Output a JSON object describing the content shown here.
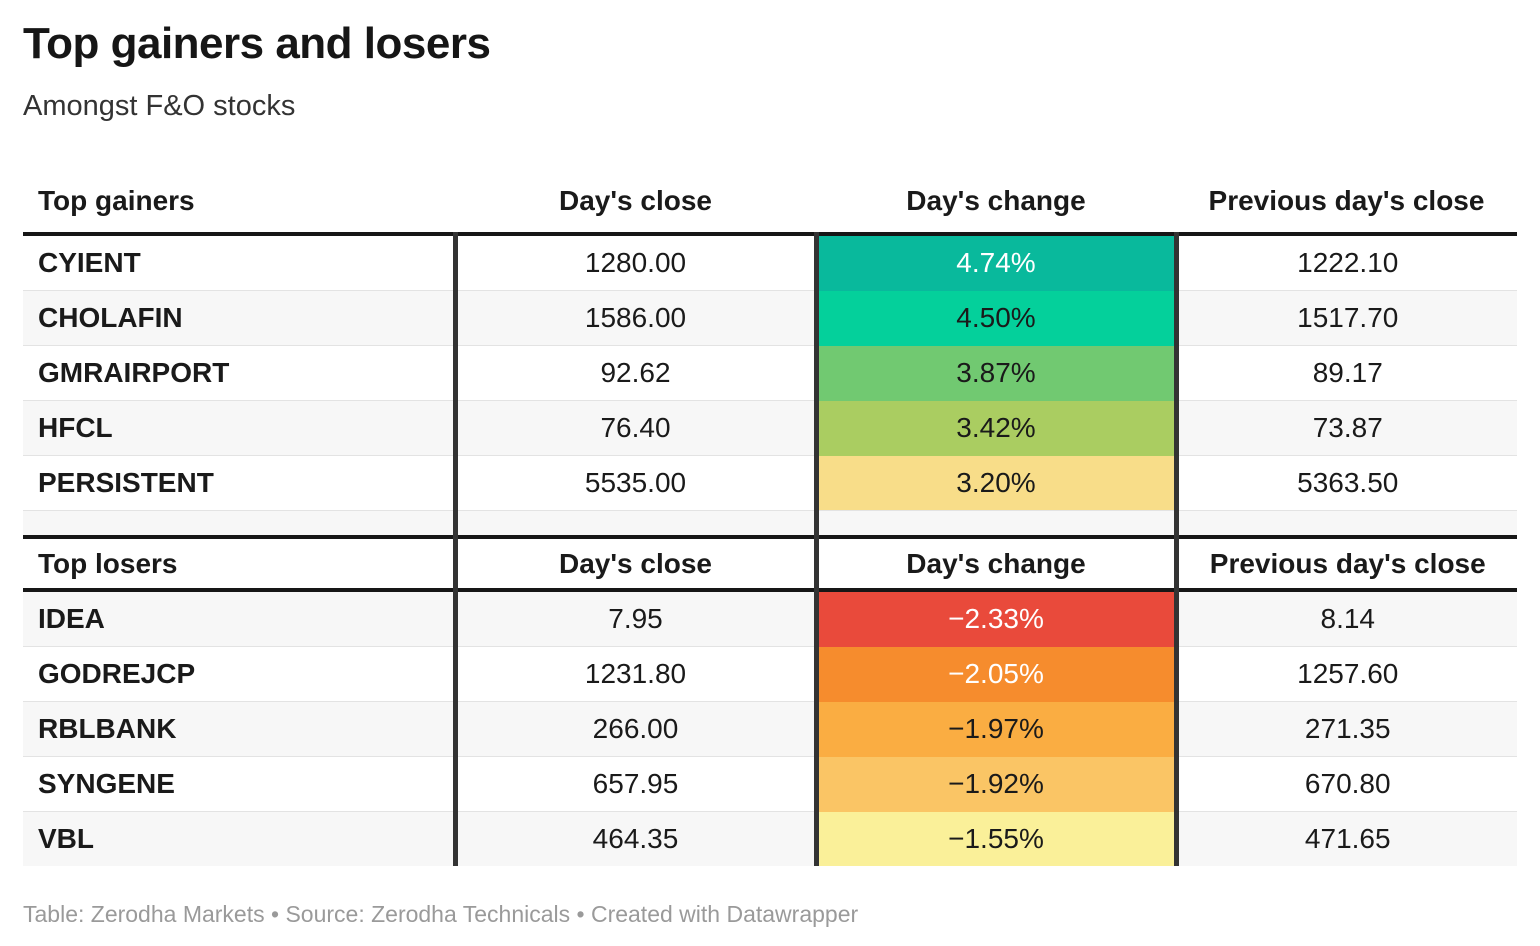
{
  "title": "Top gainers and losers",
  "subtitle": "Amongst F&O stocks",
  "footer": "Table: Zerodha Markets • Source: Zerodha Technicals • Created with Datawrapper",
  "colors": {
    "divider": "#333333",
    "header_rule": "#161616",
    "row_stripe": "#f7f7f7",
    "row_separator": "#e3e3e3",
    "footer_text": "#9a9a9a"
  },
  "chart_data": [
    {
      "type": "table",
      "title": "Top gainers",
      "columns": [
        "Top gainers",
        "Day's close",
        "Day's change",
        "Previous day's close"
      ],
      "rows": [
        {
          "name": "CYIENT",
          "close": "1280.00",
          "change": "4.74%",
          "prev": "1222.10",
          "change_value": 4.74,
          "change_bg": "#09b99c",
          "change_text": "#ffffff"
        },
        {
          "name": "CHOLAFIN",
          "close": "1586.00",
          "change": "4.50%",
          "prev": "1517.70",
          "change_value": 4.5,
          "change_bg": "#04d09b",
          "change_text": "#1a1a1a"
        },
        {
          "name": "GMRAIRPORT",
          "close": "92.62",
          "change": "3.87%",
          "prev": "89.17",
          "change_value": 3.87,
          "change_bg": "#71c971",
          "change_text": "#1a1a1a"
        },
        {
          "name": "HFCL",
          "close": "76.40",
          "change": "3.42%",
          "prev": "73.87",
          "change_value": 3.42,
          "change_bg": "#aacd61",
          "change_text": "#1a1a1a"
        },
        {
          "name": "PERSISTENT",
          "close": "5535.00",
          "change": "3.20%",
          "prev": "5363.50",
          "change_value": 3.2,
          "change_bg": "#f8dd89",
          "change_text": "#1a1a1a"
        }
      ]
    },
    {
      "type": "table",
      "title": "Top losers",
      "columns": [
        "Top losers",
        "Day's close",
        "Day's change",
        "Previous day's close"
      ],
      "rows": [
        {
          "name": "IDEA",
          "close": "7.95",
          "change": "−2.33%",
          "prev": "8.14",
          "change_value": -2.33,
          "change_bg": "#e94a3b",
          "change_text": "#ffffff"
        },
        {
          "name": "GODREJCP",
          "close": "1231.80",
          "change": "−2.05%",
          "prev": "1257.60",
          "change_value": -2.05,
          "change_bg": "#f68c2d",
          "change_text": "#ffffff"
        },
        {
          "name": "RBLBANK",
          "close": "266.00",
          "change": "−1.97%",
          "prev": "271.35",
          "change_value": -1.97,
          "change_bg": "#faad42",
          "change_text": "#1a1a1a"
        },
        {
          "name": "SYNGENE",
          "close": "657.95",
          "change": "−1.92%",
          "prev": "670.80",
          "change_value": -1.92,
          "change_bg": "#fac565",
          "change_text": "#1a1a1a"
        },
        {
          "name": "VBL",
          "close": "464.35",
          "change": "−1.55%",
          "prev": "471.65",
          "change_value": -1.55,
          "change_bg": "#faf099",
          "change_text": "#1a1a1a"
        }
      ]
    }
  ]
}
